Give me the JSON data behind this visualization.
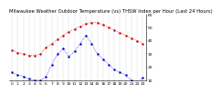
{
  "title": "Milwaukee Weather Outdoor Temperature (vs) THSW Index per Hour (Last 24 Hours)",
  "temp_color": "#cc0000",
  "thsw_color": "#0000cc",
  "background_color": "#ffffff",
  "grid_color": "#888888",
  "hours": [
    0,
    1,
    2,
    3,
    4,
    5,
    6,
    7,
    8,
    9,
    10,
    11,
    12,
    13,
    14,
    15,
    16,
    17,
    18,
    19,
    20,
    21,
    22,
    23
  ],
  "temp_values": [
    33,
    31,
    30,
    29,
    29,
    30,
    35,
    38,
    41,
    44,
    47,
    49,
    51,
    53,
    54,
    54,
    52,
    50,
    48,
    46,
    44,
    42,
    40,
    38
  ],
  "thsw_values": [
    16,
    14,
    13,
    11,
    10,
    10,
    13,
    22,
    30,
    34,
    28,
    32,
    38,
    44,
    38,
    30,
    26,
    22,
    18,
    16,
    14,
    10,
    8,
    12
  ],
  "ylim_min": 10,
  "ylim_max": 60,
  "ytick_values": [
    10,
    20,
    30,
    40,
    50,
    60
  ],
  "ytick_labels": [
    "10",
    "20",
    "30",
    "40",
    "50",
    "60"
  ],
  "title_fontsize": 3.8,
  "tick_fontsize": 3.2,
  "markersize": 1.5,
  "linewidth": 0.5
}
